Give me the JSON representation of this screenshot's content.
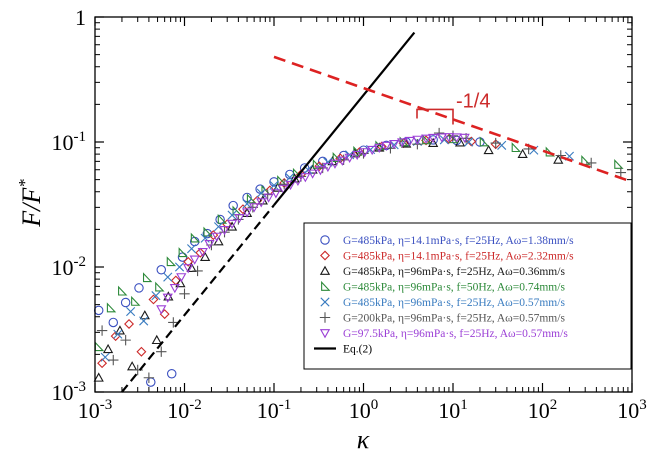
{
  "chart_data": {
    "type": "scatter",
    "x_scale": "log",
    "y_scale": "log",
    "xlim": [
      0.001,
      1000
    ],
    "ylim": [
      0.001,
      1
    ],
    "x_ticks": [
      0.001,
      0.01,
      0.1,
      1,
      10,
      100,
      1000
    ],
    "y_ticks": [
      0.001,
      0.01,
      0.1,
      1
    ],
    "x_tick_labels": [
      {
        "base": "10",
        "exp": "-3"
      },
      {
        "base": "10",
        "exp": "-2"
      },
      {
        "base": "10",
        "exp": "-1"
      },
      {
        "base": "10",
        "exp": "0"
      },
      {
        "base": "10",
        "exp": "1"
      },
      {
        "base": "10",
        "exp": "2"
      },
      {
        "base": "10",
        "exp": "3"
      }
    ],
    "y_tick_labels": [
      {
        "base": "10",
        "exp": "-3"
      },
      {
        "base": "10",
        "exp": "-2"
      },
      {
        "base": "10",
        "exp": "-1"
      },
      {
        "base": "1",
        "exp": ""
      }
    ],
    "xlabel": "κ",
    "ylabel_main": "F/F",
    "ylabel_sup": "*",
    "grid": false,
    "legend_position": "lower-right",
    "series": [
      {
        "label": "G=485kPa,  η=14.1mPa·s,  f=25Hz,  Aω=1.38mm/s",
        "marker": "circle",
        "color": "#3a4fc0",
        "points": [
          [
            0.0011,
            0.0045
          ],
          [
            0.0016,
            0.0036
          ],
          [
            0.0022,
            0.0052
          ],
          [
            0.0031,
            0.0068
          ],
          [
            0.0042,
            0.0012
          ],
          [
            0.0055,
            0.0095
          ],
          [
            0.0072,
            0.0014
          ],
          [
            0.0095,
            0.012
          ],
          [
            0.013,
            0.016
          ],
          [
            0.018,
            0.0185
          ],
          [
            0.025,
            0.024
          ],
          [
            0.035,
            0.031
          ],
          [
            0.05,
            0.036
          ],
          [
            0.07,
            0.042
          ],
          [
            0.1,
            0.048
          ],
          [
            0.15,
            0.055
          ],
          [
            0.22,
            0.062
          ],
          [
            0.35,
            0.07
          ],
          [
            0.6,
            0.078
          ],
          [
            1,
            0.086
          ],
          [
            1.8,
            0.094
          ],
          [
            3,
            0.1
          ],
          [
            6,
            0.104
          ],
          [
            11,
            0.103
          ],
          [
            20,
            0.1
          ]
        ]
      },
      {
        "label": "G=485kPa,  η=14.1mPa·s,  f=25Hz,  Aω=2.32mm/s",
        "marker": "diamond",
        "color": "#cc2a2a",
        "points": [
          [
            0.0012,
            0.0017
          ],
          [
            0.0017,
            0.0028
          ],
          [
            0.0024,
            0.0035
          ],
          [
            0.0033,
            0.0021
          ],
          [
            0.0045,
            0.0055
          ],
          [
            0.006,
            0.0042
          ],
          [
            0.008,
            0.0078
          ],
          [
            0.011,
            0.011
          ],
          [
            0.015,
            0.013
          ],
          [
            0.021,
            0.018
          ],
          [
            0.03,
            0.022
          ],
          [
            0.045,
            0.029
          ],
          [
            0.065,
            0.034
          ],
          [
            0.09,
            0.041
          ],
          [
            0.13,
            0.047
          ],
          [
            0.2,
            0.055
          ],
          [
            0.32,
            0.064
          ],
          [
            0.55,
            0.074
          ],
          [
            0.9,
            0.083
          ],
          [
            1.6,
            0.092
          ],
          [
            2.8,
            0.098
          ],
          [
            5,
            0.103
          ],
          [
            9,
            0.106
          ],
          [
            16,
            0.101
          ],
          [
            30,
            0.096
          ]
        ]
      },
      {
        "label": "G=485kPa,  η=96mPa·s,  f=25Hz,  Aω=0.36mm/s",
        "marker": "triangle-up",
        "color": "#1a1a1a",
        "points": [
          [
            0.0011,
            0.0013
          ],
          [
            0.0014,
            0.0022
          ],
          [
            0.0019,
            0.0031
          ],
          [
            0.0026,
            0.0016
          ],
          [
            0.0036,
            0.0041
          ],
          [
            0.0049,
            0.0026
          ],
          [
            0.0066,
            0.0058
          ],
          [
            0.009,
            0.0074
          ],
          [
            0.012,
            0.0098
          ],
          [
            0.017,
            0.012
          ],
          [
            0.024,
            0.016
          ],
          [
            0.034,
            0.021
          ],
          [
            0.05,
            0.027
          ],
          [
            0.075,
            0.034
          ],
          [
            0.11,
            0.043
          ],
          [
            0.17,
            0.051
          ],
          [
            0.27,
            0.06
          ],
          [
            0.45,
            0.07
          ],
          [
            0.8,
            0.081
          ],
          [
            1.5,
            0.09
          ],
          [
            3,
            0.097
          ],
          [
            6,
            0.098
          ],
          [
            12,
            0.099
          ],
          [
            25,
            0.086
          ],
          [
            60,
            0.08
          ],
          [
            150,
            0.072
          ]
        ]
      },
      {
        "label": "G=485kPa,  η=96mPa·s,  f=50Hz,  Aω=0.74mm/s",
        "marker": "triangle-right",
        "color": "#2d8a3a",
        "points": [
          [
            0.0011,
            0.0023
          ],
          [
            0.0015,
            0.0047
          ],
          [
            0.002,
            0.0064
          ],
          [
            0.0028,
            0.0053
          ],
          [
            0.0038,
            0.0082
          ],
          [
            0.0052,
            0.0069
          ],
          [
            0.007,
            0.011
          ],
          [
            0.0095,
            0.013
          ],
          [
            0.013,
            0.017
          ],
          [
            0.018,
            0.019
          ],
          [
            0.026,
            0.024
          ],
          [
            0.038,
            0.028
          ],
          [
            0.055,
            0.035
          ],
          [
            0.08,
            0.041
          ],
          [
            0.12,
            0.049
          ],
          [
            0.18,
            0.056
          ],
          [
            0.3,
            0.066
          ],
          [
            0.5,
            0.075
          ],
          [
            0.85,
            0.084
          ],
          [
            1.5,
            0.093
          ],
          [
            2.8,
            0.1
          ],
          [
            5,
            0.104
          ],
          [
            10,
            0.106
          ],
          [
            22,
            0.1
          ],
          [
            50,
            0.09
          ],
          [
            120,
            0.083
          ],
          [
            300,
            0.071
          ],
          [
            700,
            0.066
          ]
        ]
      },
      {
        "label": "G=485kPa,  η=96mPa·s,  f=25Hz,  Aω=0.57mm/s",
        "marker": "cross",
        "color": "#3a7cc0",
        "points": [
          [
            0.0013,
            0.0019
          ],
          [
            0.0018,
            0.0029
          ],
          [
            0.0025,
            0.0044
          ],
          [
            0.0035,
            0.0037
          ],
          [
            0.0048,
            0.0059
          ],
          [
            0.0065,
            0.0083
          ],
          [
            0.0088,
            0.01
          ],
          [
            0.012,
            0.014
          ],
          [
            0.017,
            0.017
          ],
          [
            0.024,
            0.021
          ],
          [
            0.034,
            0.026
          ],
          [
            0.05,
            0.032
          ],
          [
            0.072,
            0.039
          ],
          [
            0.1,
            0.045
          ],
          [
            0.15,
            0.052
          ],
          [
            0.24,
            0.06
          ],
          [
            0.4,
            0.069
          ],
          [
            0.7,
            0.079
          ],
          [
            1.2,
            0.087
          ],
          [
            2.2,
            0.095
          ],
          [
            4,
            0.101
          ],
          [
            8,
            0.104
          ],
          [
            15,
            0.1
          ],
          [
            35,
            0.094
          ],
          [
            80,
            0.086
          ],
          [
            200,
            0.077
          ]
        ]
      },
      {
        "label": "G=200kPa,   η=96mPa·s,  f=25Hz,  Aω=0.57mm/s",
        "marker": "plus",
        "color": "#555555",
        "points": [
          [
            0.0012,
            0.0031
          ],
          [
            0.0016,
            0.0018
          ],
          [
            0.0022,
            0.0026
          ],
          [
            0.003,
            0.0015
          ],
          [
            0.004,
            0.0013
          ],
          [
            0.0055,
            0.0021
          ],
          [
            0.0075,
            0.0036
          ],
          [
            0.01,
            0.0061
          ],
          [
            0.014,
            0.0093
          ],
          [
            0.02,
            0.015
          ],
          [
            0.028,
            0.019
          ],
          [
            0.04,
            0.024
          ],
          [
            0.058,
            0.03
          ],
          [
            0.085,
            0.038
          ],
          [
            0.13,
            0.046
          ],
          [
            0.2,
            0.053
          ],
          [
            0.35,
            0.062
          ],
          [
            0.6,
            0.072
          ],
          [
            1,
            0.081
          ],
          [
            2,
            0.089
          ],
          [
            4,
            0.096
          ],
          [
            7,
            0.118
          ],
          [
            10,
            0.112
          ],
          [
            14,
            0.107
          ],
          [
            30,
            0.098
          ],
          [
            70,
            0.088
          ],
          [
            160,
            0.078
          ],
          [
            350,
            0.068
          ],
          [
            750,
            0.057
          ]
        ]
      },
      {
        "label": "G=97.5kPa,  η=96mPa·s,  f=25Hz,  Aω=0.57mm/s",
        "marker": "triangle-down",
        "color": "#9b3fd6",
        "points": [
          [
            0.0055,
            0.0046
          ],
          [
            0.0065,
            0.0057
          ],
          [
            0.0078,
            0.0068
          ],
          [
            0.0092,
            0.0083
          ],
          [
            0.011,
            0.0098
          ],
          [
            0.013,
            0.0115
          ],
          [
            0.016,
            0.0132
          ],
          [
            0.019,
            0.0153
          ],
          [
            0.023,
            0.0175
          ],
          [
            0.028,
            0.0198
          ],
          [
            0.034,
            0.0222
          ],
          [
            0.041,
            0.0247
          ],
          [
            0.05,
            0.0274
          ],
          [
            0.06,
            0.0301
          ],
          [
            0.072,
            0.033
          ],
          [
            0.087,
            0.036
          ],
          [
            0.105,
            0.039
          ],
          [
            0.127,
            0.0423
          ],
          [
            0.153,
            0.0455
          ],
          [
            0.185,
            0.049
          ],
          [
            0.224,
            0.0524
          ],
          [
            0.27,
            0.056
          ],
          [
            0.33,
            0.0597
          ],
          [
            0.4,
            0.0634
          ],
          [
            0.48,
            0.0672
          ],
          [
            0.58,
            0.0711
          ],
          [
            0.7,
            0.075
          ],
          [
            0.85,
            0.079
          ],
          [
            1.03,
            0.083
          ],
          [
            1.25,
            0.0866
          ],
          [
            1.5,
            0.09
          ],
          [
            1.8,
            0.0934
          ],
          [
            2.2,
            0.0965
          ],
          [
            2.7,
            0.0995
          ],
          [
            3.3,
            0.1022
          ],
          [
            4,
            0.1045
          ],
          [
            5,
            0.1065
          ],
          [
            6,
            0.108
          ],
          [
            7.5,
            0.109
          ],
          [
            9,
            0.1095
          ],
          [
            11,
            0.109
          ],
          [
            13.5,
            0.1082
          ]
        ]
      }
    ],
    "reference_line": {
      "label": "Eq.(2)",
      "points": [
        [
          0.002,
          0.001
        ],
        [
          3.7,
          0.75
        ]
      ],
      "dashed_below_x": 0.1
    },
    "slope_line": {
      "points": [
        [
          0.1,
          0.48
        ],
        [
          1000,
          0.048
        ]
      ],
      "color": "#dd2222"
    },
    "slope_annotation": {
      "text": "-1/4",
      "at": [
        10,
        0.16
      ],
      "color": "#cc2a2a"
    }
  }
}
